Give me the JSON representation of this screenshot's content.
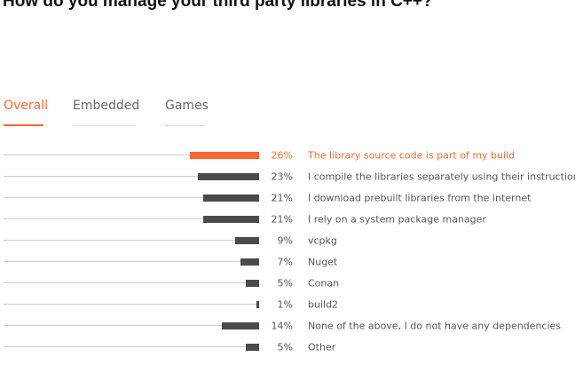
{
  "title": "How do you manage your third party libraries in C++?",
  "tabs": [
    {
      "label": "Overall",
      "active": true
    },
    {
      "label": "Embedded",
      "active": false
    },
    {
      "label": "Games",
      "active": false
    }
  ],
  "colors": {
    "accent": "#ff6633",
    "bar": "#4a4a4a",
    "baseline": "#cccccc",
    "label": "#555555"
  },
  "chart_data": {
    "type": "bar",
    "orientation": "horizontal",
    "highlighted_index": 0,
    "value_suffix": "%",
    "xlim": [
      0,
      100
    ],
    "grid": false,
    "legend": "none",
    "categories": [
      "The library source code is part of my build",
      "I compile the libraries separately using their instructions",
      "I download prebuilt libraries from the internet",
      "I rely on a system package manager",
      "vcpkg",
      "Nuget",
      "Conan",
      "build2",
      "None of the above, I do not have any dependencies",
      "Other"
    ],
    "values": [
      26,
      23,
      21,
      21,
      9,
      7,
      5,
      1,
      14,
      5
    ]
  }
}
